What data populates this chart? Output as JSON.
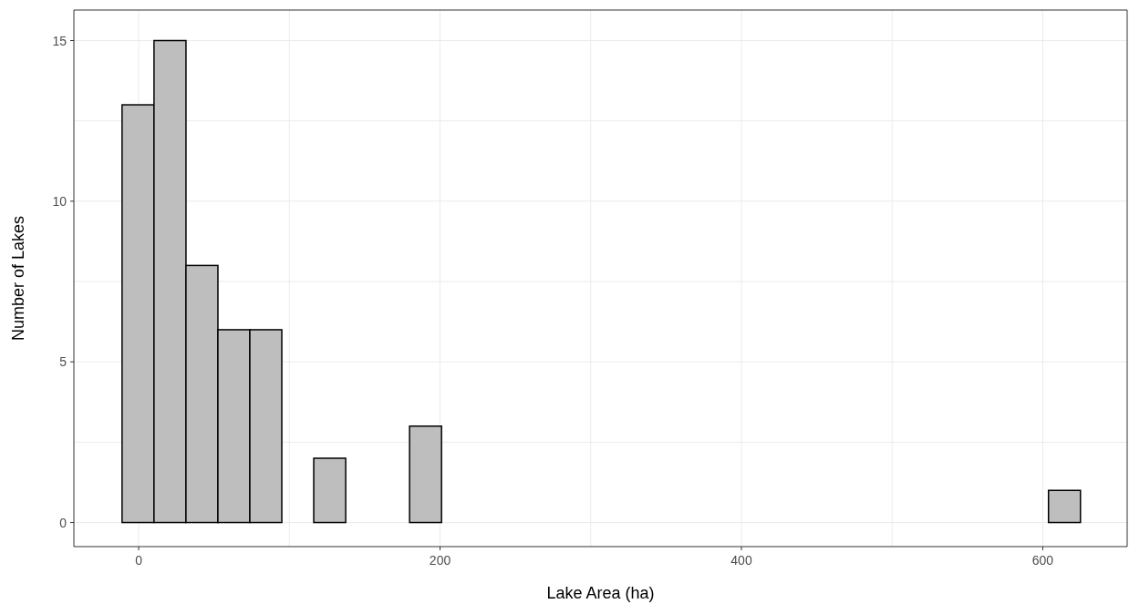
{
  "chart_data": {
    "type": "histogram",
    "xlabel": "Lake Area (ha)",
    "ylabel": "Number of Lakes",
    "bins": [
      -11,
      10.2,
      31.4,
      52.6,
      73.8,
      95,
      116.2,
      137.4,
      158.6,
      179.8,
      201,
      222.2,
      243.4,
      264.6,
      285.8,
      307,
      328.2,
      349.4,
      370.6,
      391.8,
      413,
      434.2,
      455.4,
      476.6,
      497.8,
      519,
      540.2,
      561.4,
      582.6,
      603.8,
      625
    ],
    "values": [
      13,
      15,
      8,
      6,
      6,
      0,
      2,
      0,
      0,
      3,
      0,
      0,
      0,
      0,
      0,
      0,
      0,
      0,
      0,
      0,
      0,
      0,
      0,
      0,
      0,
      0,
      0,
      0,
      0,
      1
    ],
    "color": "#bebebe",
    "xlim": [
      -43,
      656
    ],
    "xticks": [
      0,
      {
        "value": 100,
        "label": null
      },
      200,
      {
        "value": 300,
        "label": null
      },
      400,
      {
        "value": 500,
        "label": null
      },
      600
    ],
    "ylim": [
      -0.75,
      15.95
    ],
    "yticks": [
      0,
      {
        "value": 2.5,
        "label": null
      },
      5,
      {
        "value": 7.5,
        "label": null
      },
      10,
      {
        "value": 12.5,
        "label": null
      },
      15
    ],
    "grid": true
  }
}
